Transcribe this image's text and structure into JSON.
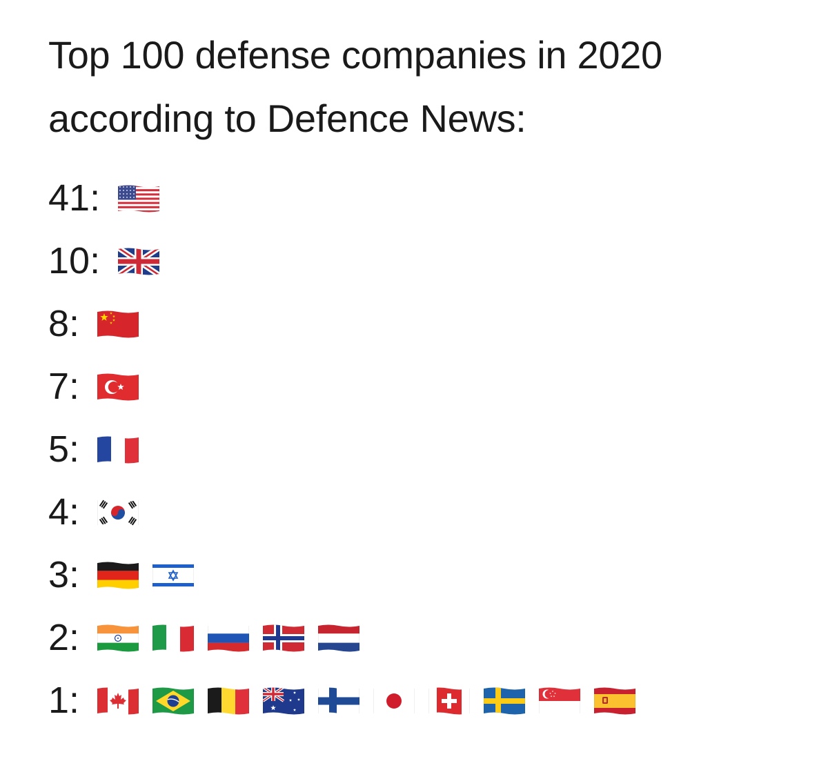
{
  "title": {
    "line1": "Top 100 defense companies in 2020",
    "line2": "according to Defence News:"
  },
  "rows": [
    {
      "count": "41:",
      "flags": [
        "flag-united-states-icon"
      ]
    },
    {
      "count": "10:",
      "flags": [
        "flag-united-kingdom-icon"
      ]
    },
    {
      "count": "8:",
      "flags": [
        "flag-china-icon"
      ]
    },
    {
      "count": "7:",
      "flags": [
        "flag-turkey-icon"
      ]
    },
    {
      "count": "5:",
      "flags": [
        "flag-france-icon"
      ]
    },
    {
      "count": "4:",
      "flags": [
        "flag-south-korea-icon"
      ]
    },
    {
      "count": "3:",
      "flags": [
        "flag-germany-icon",
        "flag-israel-icon"
      ]
    },
    {
      "count": "2:",
      "flags": [
        "flag-india-icon",
        "flag-italy-icon",
        "flag-russia-icon",
        "flag-norway-icon",
        "flag-netherlands-icon"
      ]
    },
    {
      "count": "1:",
      "flags": [
        "flag-canada-icon",
        "flag-brazil-icon",
        "flag-belgium-icon",
        "flag-australia-icon",
        "flag-finland-icon",
        "flag-japan-icon",
        "flag-switzerland-icon",
        "flag-sweden-icon",
        "flag-singapore-icon",
        "flag-spain-icon"
      ]
    }
  ]
}
